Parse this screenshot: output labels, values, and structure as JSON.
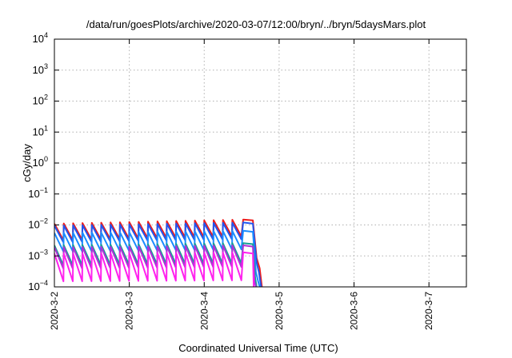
{
  "chart_data": {
    "type": "line",
    "title": "/data/run/goesPlots/archive/2020-03-07/12:00/bryn/../bryn/5daysMars.plot",
    "xlabel": "Coordinated Universal Time (UTC)",
    "ylabel": "cGy/day",
    "y_scale": "log",
    "ylim_exp": [
      -4,
      4
    ],
    "y_tick_exponents": [
      -4,
      -3,
      -2,
      -1,
      0,
      1,
      2,
      3,
      4
    ],
    "y_tick_base": "10",
    "xlim": [
      0,
      5.5
    ],
    "x_tick_positions": [
      0,
      1,
      2,
      3,
      4,
      5
    ],
    "x_tick_labels": [
      "2020-3-2",
      "2020-3-3",
      "2020-3-4",
      "2020-3-5",
      "2020-3-6",
      "2020-3-7"
    ],
    "grid": true,
    "x_note": "x values are days after 2020-3-2 00:00 UTC",
    "sawtooth_period_days": 0.125,
    "series": [
      {
        "color": "#ee1c1c",
        "points": [
          [
            0,
            0.011
          ],
          [
            2.52,
            0.015
          ],
          [
            2.65,
            0.014
          ],
          [
            2.7,
            0.00085
          ],
          [
            2.74,
            0.0004
          ],
          [
            2.77,
            0.0001
          ]
        ],
        "sawtooth_ratio": 3.5
      },
      {
        "color": "#2255ee",
        "points": [
          [
            0,
            0.0095
          ],
          [
            2.52,
            0.012
          ],
          [
            2.65,
            0.011
          ],
          [
            2.7,
            0.0006
          ],
          [
            2.73,
            0.0003
          ],
          [
            2.76,
            0.0001
          ]
        ],
        "sawtooth_ratio": 3.5
      },
      {
        "color": "#1a8cff",
        "points": [
          [
            0,
            0.0055
          ],
          [
            2.52,
            0.0065
          ],
          [
            2.65,
            0.006
          ],
          [
            2.69,
            0.0003
          ],
          [
            2.72,
            0.00015
          ],
          [
            2.74,
            0.0001
          ]
        ],
        "sawtooth_ratio": 4.0
      },
      {
        "color": "#16a096",
        "points": [
          [
            0,
            0.0022
          ],
          [
            2.52,
            0.0026
          ],
          [
            2.65,
            0.0024
          ],
          [
            2.68,
            0.0002
          ],
          [
            2.7,
            0.0001
          ]
        ],
        "sawtooth_ratio": 4.5
      },
      {
        "color": "#b030d8",
        "points": [
          [
            0,
            0.0019
          ],
          [
            2.52,
            0.0022
          ],
          [
            2.65,
            0.002
          ],
          [
            2.67,
            0.00015
          ],
          [
            2.69,
            0.0001
          ]
        ],
        "sawtooth_ratio": 5.0
      },
      {
        "color": "#ff22ee",
        "points": [
          [
            0,
            0.0012
          ],
          [
            2.52,
            0.0013
          ],
          [
            2.65,
            0.0012
          ],
          [
            2.66,
            0.0001
          ]
        ],
        "sawtooth_ratio": 8.0
      }
    ]
  }
}
